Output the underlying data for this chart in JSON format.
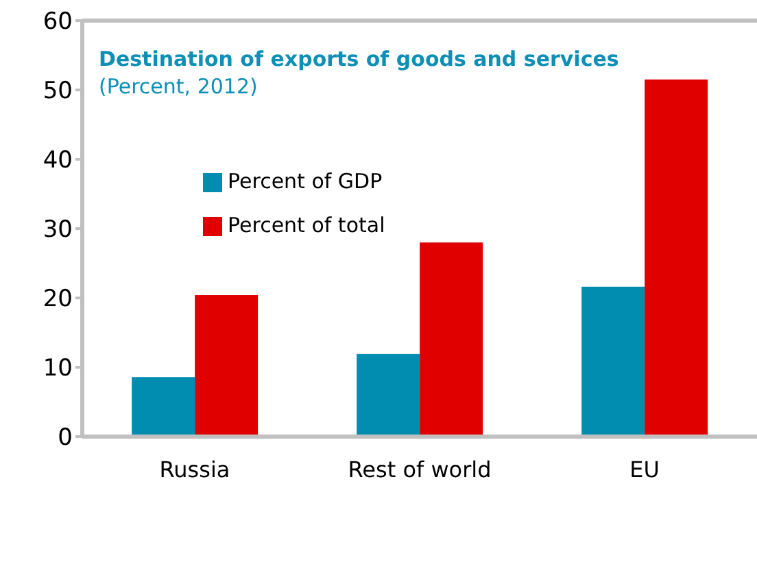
{
  "chart_data": {
    "type": "bar",
    "title": "Destination of exports of goods and services",
    "subtitle": "(Percent, 2012)",
    "categories": [
      "Russia",
      "Rest of world",
      "EU"
    ],
    "series": [
      {
        "name": "Percent of GDP",
        "color": "#008db0",
        "values": [
          8.6,
          11.9,
          21.6
        ]
      },
      {
        "name": "Percent of total",
        "color": "#e00000",
        "values": [
          20.4,
          28.0,
          51.5
        ]
      }
    ],
    "ylim": [
      0,
      60
    ],
    "yticks": [
      0,
      10,
      20,
      30,
      40,
      50,
      60
    ],
    "grid": false,
    "legend": "top left"
  }
}
